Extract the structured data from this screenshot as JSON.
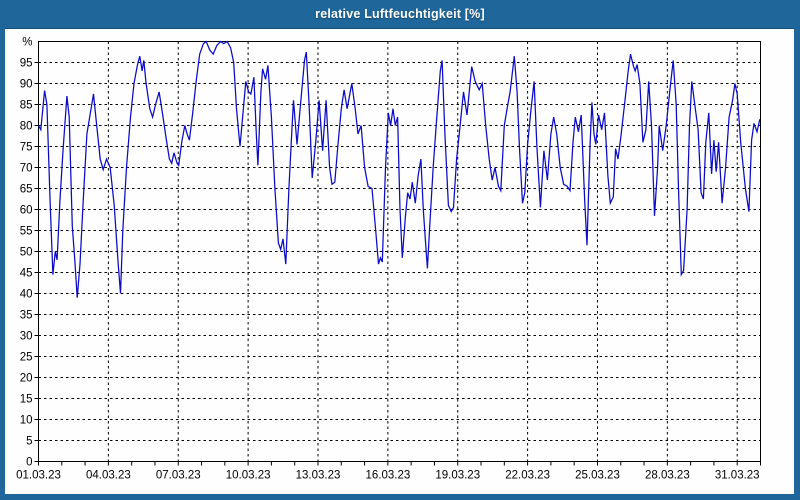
{
  "window": {
    "title": "relative Luftfeuchtigkeit [%]"
  },
  "colors": {
    "frame_blue": "#1f679b",
    "plot_background": "#fdfefd",
    "grid_color": "#000000",
    "axis_color": "#000000",
    "line_color": "#0a0ac8",
    "title_text": "#ffffff",
    "tick_label_color": "#000000"
  },
  "chart_data": {
    "type": "line",
    "title": "relative Luftfeuchtigkeit [%]",
    "y_unit_label": "%",
    "ylim": [
      0,
      100
    ],
    "ytick_step": 5,
    "y_tick_labels": [
      "0",
      "5",
      "10",
      "15",
      "20",
      "25",
      "30",
      "35",
      "40",
      "45",
      "50",
      "55",
      "60",
      "65",
      "70",
      "75",
      "80",
      "85",
      "90",
      "95"
    ],
    "x_range_days": [
      0,
      31
    ],
    "x_minor_tick_every_days": 1,
    "x_grid_every_days": 3,
    "x_tick_labels": [
      {
        "day": 0,
        "label": "01.03.23"
      },
      {
        "day": 3,
        "label": "04.03.23"
      },
      {
        "day": 6,
        "label": "07.03.23"
      },
      {
        "day": 9,
        "label": "10.03.23"
      },
      {
        "day": 12,
        "label": "13.03.23"
      },
      {
        "day": 15,
        "label": "16.03.23"
      },
      {
        "day": 18,
        "label": "19.03.23"
      },
      {
        "day": 21,
        "label": "22.03.23"
      },
      {
        "day": 24,
        "label": "25.03.23"
      },
      {
        "day": 27,
        "label": "28.03.23"
      },
      {
        "day": 30,
        "label": "31.03.23"
      }
    ],
    "grid": "dashed",
    "legend": "none",
    "series": [
      {
        "name": "relative Luftfeuchtigkeit [%]",
        "points_day_value": [
          [
            0,
            80
          ],
          [
            0.1,
            79
          ],
          [
            0.26,
            88.3
          ],
          [
            0.36,
            85
          ],
          [
            0.5,
            62
          ],
          [
            0.62,
            44.5
          ],
          [
            0.72,
            50
          ],
          [
            0.8,
            48
          ],
          [
            0.92,
            62
          ],
          [
            1.05,
            74
          ],
          [
            1.22,
            87
          ],
          [
            1.32,
            82
          ],
          [
            1.45,
            56
          ],
          [
            1.56,
            48
          ],
          [
            1.66,
            39
          ],
          [
            1.78,
            47
          ],
          [
            1.92,
            62
          ],
          [
            2.08,
            78
          ],
          [
            2.36,
            87.5
          ],
          [
            2.5,
            80
          ],
          [
            2.65,
            72
          ],
          [
            2.78,
            69.5
          ],
          [
            2.92,
            72
          ],
          [
            3.08,
            70
          ],
          [
            3.25,
            61
          ],
          [
            3.42,
            47
          ],
          [
            3.52,
            40
          ],
          [
            3.62,
            55
          ],
          [
            3.78,
            70
          ],
          [
            3.95,
            82
          ],
          [
            4.1,
            90
          ],
          [
            4.25,
            94.5
          ],
          [
            4.35,
            96.5
          ],
          [
            4.45,
            93
          ],
          [
            4.52,
            95.5
          ],
          [
            4.62,
            90
          ],
          [
            4.78,
            84
          ],
          [
            4.9,
            82
          ],
          [
            5.05,
            85.5
          ],
          [
            5.18,
            88
          ],
          [
            5.32,
            83
          ],
          [
            5.48,
            77
          ],
          [
            5.62,
            72
          ],
          [
            5.72,
            71
          ],
          [
            5.82,
            73.5
          ],
          [
            5.95,
            71
          ],
          [
            6.02,
            70.5
          ],
          [
            6.15,
            76
          ],
          [
            6.28,
            80
          ],
          [
            6.38,
            78
          ],
          [
            6.48,
            76.5
          ],
          [
            6.62,
            83
          ],
          [
            6.78,
            91
          ],
          [
            6.92,
            97
          ],
          [
            7.08,
            99.5
          ],
          [
            7.2,
            100
          ],
          [
            7.35,
            98
          ],
          [
            7.5,
            97
          ],
          [
            7.65,
            99
          ],
          [
            7.82,
            100
          ],
          [
            7.95,
            99.5
          ],
          [
            8.1,
            100
          ],
          [
            8.25,
            98.5
          ],
          [
            8.38,
            95
          ],
          [
            8.5,
            84
          ],
          [
            8.65,
            75
          ],
          [
            8.78,
            83
          ],
          [
            8.9,
            90.5
          ],
          [
            9.02,
            88
          ],
          [
            9.12,
            87.5
          ],
          [
            9.25,
            91.5
          ],
          [
            9.35,
            78
          ],
          [
            9.42,
            70.5
          ],
          [
            9.55,
            88
          ],
          [
            9.62,
            93.5
          ],
          [
            9.75,
            91
          ],
          [
            9.85,
            94.3
          ],
          [
            10,
            82
          ],
          [
            10.15,
            65
          ],
          [
            10.3,
            52
          ],
          [
            10.4,
            50.5
          ],
          [
            10.5,
            53
          ],
          [
            10.62,
            47
          ],
          [
            10.75,
            65
          ],
          [
            10.88,
            79
          ],
          [
            10.95,
            86
          ],
          [
            11.1,
            75.5
          ],
          [
            11.25,
            85
          ],
          [
            11.42,
            95.5
          ],
          [
            11.5,
            97.5
          ],
          [
            11.62,
            85
          ],
          [
            11.75,
            67.5
          ],
          [
            11.9,
            76
          ],
          [
            12.05,
            86
          ],
          [
            12.2,
            74
          ],
          [
            12.35,
            86
          ],
          [
            12.5,
            70
          ],
          [
            12.6,
            66
          ],
          [
            12.72,
            66.5
          ],
          [
            12.85,
            75
          ],
          [
            13,
            84
          ],
          [
            13.12,
            88.5
          ],
          [
            13.25,
            84
          ],
          [
            13.45,
            90
          ],
          [
            13.6,
            84
          ],
          [
            13.72,
            78
          ],
          [
            13.85,
            80
          ],
          [
            14,
            70
          ],
          [
            14.15,
            65.5
          ],
          [
            14.32,
            65
          ],
          [
            14.48,
            55
          ],
          [
            14.6,
            47
          ],
          [
            14.68,
            48.5
          ],
          [
            14.76,
            47.5
          ],
          [
            14.9,
            70
          ],
          [
            15.02,
            83
          ],
          [
            15.12,
            80
          ],
          [
            15.22,
            84
          ],
          [
            15.32,
            80
          ],
          [
            15.42,
            82
          ],
          [
            15.52,
            60
          ],
          [
            15.62,
            48.5
          ],
          [
            15.75,
            58
          ],
          [
            15.85,
            64
          ],
          [
            15.95,
            62.5
          ],
          [
            16.05,
            66.5
          ],
          [
            16.18,
            61.5
          ],
          [
            16.3,
            68
          ],
          [
            16.42,
            72
          ],
          [
            16.52,
            60
          ],
          [
            16.62,
            52
          ],
          [
            16.7,
            46
          ],
          [
            16.82,
            58
          ],
          [
            16.95,
            70.5
          ],
          [
            17.1,
            82
          ],
          [
            17.25,
            93
          ],
          [
            17.33,
            95.5
          ],
          [
            17.45,
            78
          ],
          [
            17.6,
            61
          ],
          [
            17.72,
            59.5
          ],
          [
            17.82,
            60.5
          ],
          [
            17.95,
            72
          ],
          [
            18.1,
            80
          ],
          [
            18.25,
            88
          ],
          [
            18.4,
            82.5
          ],
          [
            18.6,
            94
          ],
          [
            18.75,
            90.5
          ],
          [
            18.92,
            88.5
          ],
          [
            19.05,
            90
          ],
          [
            19.2,
            80
          ],
          [
            19.35,
            72
          ],
          [
            19.48,
            67
          ],
          [
            19.6,
            70
          ],
          [
            19.75,
            65.5
          ],
          [
            19.85,
            64.5
          ],
          [
            20,
            80
          ],
          [
            20.12,
            84
          ],
          [
            20.25,
            88
          ],
          [
            20.43,
            96.5
          ],
          [
            20.55,
            88
          ],
          [
            20.65,
            75
          ],
          [
            20.78,
            61.5
          ],
          [
            20.88,
            64
          ],
          [
            21,
            75.5
          ],
          [
            21.15,
            84
          ],
          [
            21.28,
            90.5
          ],
          [
            21.4,
            75
          ],
          [
            21.55,
            60.5
          ],
          [
            21.7,
            74
          ],
          [
            21.85,
            67
          ],
          [
            22,
            78
          ],
          [
            22.12,
            82
          ],
          [
            22.25,
            78
          ],
          [
            22.4,
            70
          ],
          [
            22.55,
            66
          ],
          [
            22.7,
            65.5
          ],
          [
            22.82,
            64.5
          ],
          [
            22.95,
            76
          ],
          [
            23.05,
            82
          ],
          [
            23.18,
            78.5
          ],
          [
            23.3,
            82.5
          ],
          [
            23.45,
            62
          ],
          [
            23.55,
            51.5
          ],
          [
            23.68,
            75
          ],
          [
            23.76,
            85.5
          ],
          [
            23.85,
            78
          ],
          [
            23.93,
            75.5
          ],
          [
            24.05,
            82.5
          ],
          [
            24.18,
            79
          ],
          [
            24.3,
            83
          ],
          [
            24.45,
            68
          ],
          [
            24.55,
            61.5
          ],
          [
            24.68,
            63
          ],
          [
            24.78,
            74.5
          ],
          [
            24.88,
            72
          ],
          [
            25.02,
            78
          ],
          [
            25.18,
            86
          ],
          [
            25.32,
            93
          ],
          [
            25.42,
            97
          ],
          [
            25.55,
            94
          ],
          [
            25.62,
            93
          ],
          [
            25.7,
            94.5
          ],
          [
            25.82,
            90
          ],
          [
            25.95,
            76
          ],
          [
            26.08,
            79
          ],
          [
            26.2,
            90.5
          ],
          [
            26.32,
            80
          ],
          [
            26.45,
            58.5
          ],
          [
            26.58,
            70
          ],
          [
            26.65,
            80
          ],
          [
            26.8,
            74
          ],
          [
            26.95,
            80
          ],
          [
            27.1,
            88
          ],
          [
            27.25,
            95.5
          ],
          [
            27.38,
            85
          ],
          [
            27.48,
            65
          ],
          [
            27.6,
            44.5
          ],
          [
            27.7,
            45.5
          ],
          [
            27.85,
            60
          ],
          [
            27.95,
            80
          ],
          [
            28.05,
            90.5
          ],
          [
            28.2,
            84
          ],
          [
            28.32,
            79
          ],
          [
            28.45,
            64
          ],
          [
            28.55,
            62.5
          ],
          [
            28.65,
            76
          ],
          [
            28.78,
            83
          ],
          [
            28.9,
            68.5
          ],
          [
            29,
            76.5
          ],
          [
            29.1,
            69
          ],
          [
            29.2,
            76
          ],
          [
            29.35,
            61.5
          ],
          [
            29.5,
            70
          ],
          [
            29.65,
            82
          ],
          [
            29.8,
            86
          ],
          [
            29.9,
            90
          ],
          [
            30,
            87.5
          ],
          [
            30.15,
            76
          ],
          [
            30.35,
            65
          ],
          [
            30.5,
            59.5
          ],
          [
            30.62,
            76.5
          ],
          [
            30.72,
            80.5
          ],
          [
            30.85,
            78.5
          ],
          [
            30.97,
            81.5
          ]
        ]
      }
    ]
  }
}
